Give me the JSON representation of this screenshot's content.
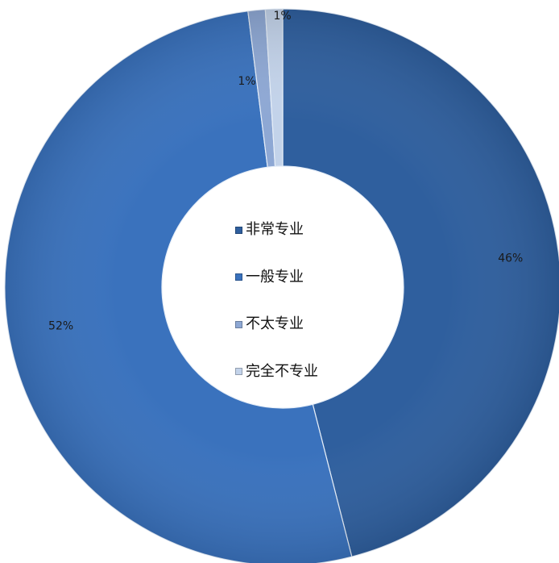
{
  "chart_data": {
    "type": "pie",
    "variant": "doughnut",
    "start_angle_deg": 0,
    "direction": "clockwise",
    "legend_position": "center",
    "series": [
      {
        "categories": [
          "非常专业",
          "一般专业",
          "不太专业",
          "完全不专业"
        ],
        "values": [
          46,
          52,
          1,
          1
        ],
        "labels": [
          "46%",
          "52%",
          "1%",
          "1%"
        ],
        "colors": [
          "#2f5f9e",
          "#3a72bd",
          "#8ea8d4",
          "#c3d3ea"
        ]
      }
    ]
  }
}
